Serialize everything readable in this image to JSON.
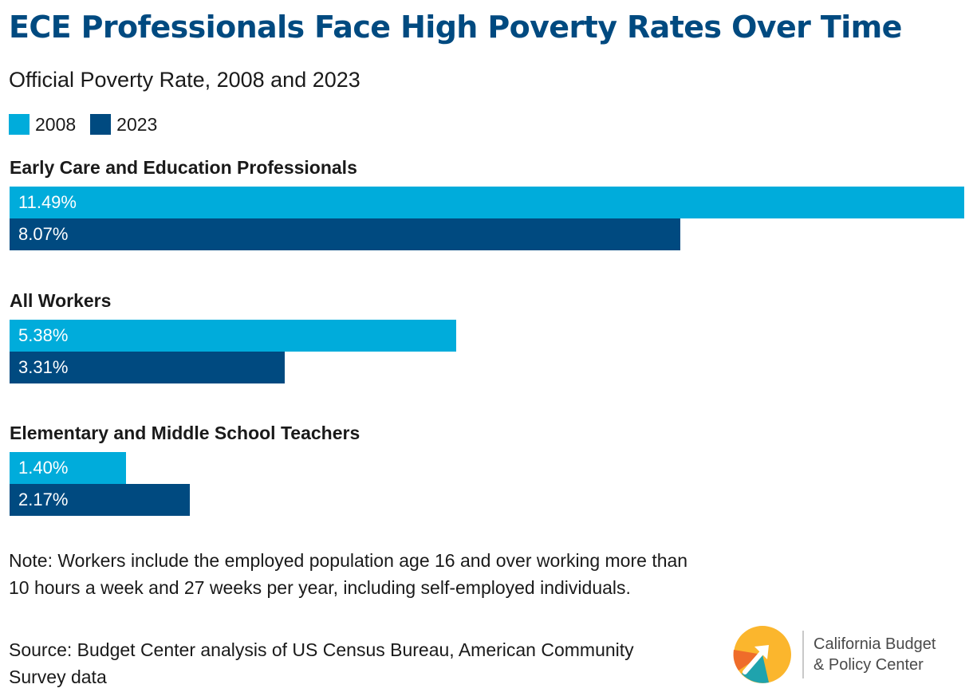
{
  "title": "ECE Professionals Face High Poverty Rates Over Time",
  "subtitle": "Official Poverty Rate, 2008 and 2023",
  "colors": {
    "2008": "#00acdb",
    "2023": "#004a80",
    "title": "#004a80"
  },
  "legend": [
    {
      "label": "2008",
      "color": "#00acdb"
    },
    {
      "label": "2023",
      "color": "#004a80"
    }
  ],
  "chart_data": {
    "type": "bar",
    "orientation": "horizontal",
    "categories": [
      "Early Care and Education Professionals",
      "All Workers",
      "Elementary and Middle School Teachers"
    ],
    "series": [
      {
        "name": "2008",
        "values": [
          11.49,
          5.38,
          1.4
        ],
        "labels": [
          "11.49%",
          "5.38%",
          "1.40%"
        ]
      },
      {
        "name": "2023",
        "values": [
          8.07,
          3.31,
          2.17
        ],
        "labels": [
          "8.07%",
          "3.31%",
          "2.17%"
        ]
      }
    ],
    "unit": "%",
    "grid": false,
    "legend_position": "top-left"
  },
  "note": "Note: Workers include the employed population age 16 and over working more than 10 hours a week and 27 weeks per year, including self-employed individuals.",
  "source": "Source: Budget Center analysis of US Census Bureau, American Community Survey data",
  "logo": {
    "line1": "California Budget",
    "line2": "& Policy Center",
    "icon": "arrow-circle-logo-icon"
  }
}
